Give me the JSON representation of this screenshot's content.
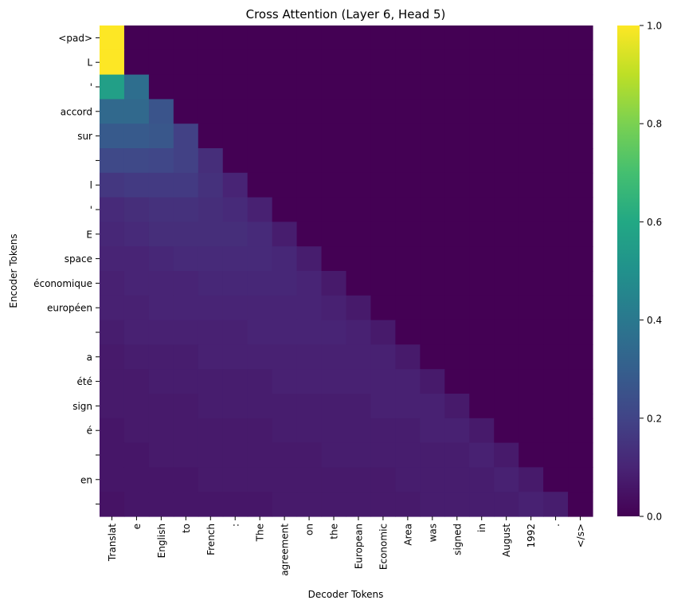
{
  "chart_data": {
    "type": "heatmap",
    "title": "Cross Attention (Layer 6, Head 5)",
    "xlabel": "Decoder Tokens",
    "ylabel": "Encoder Tokens",
    "x_categories": [
      "Translat",
      "e",
      "English",
      "to",
      "French",
      ":",
      "The",
      "agreement",
      "on",
      "the",
      "European",
      "Economic",
      "Area",
      "was",
      "signed",
      "in",
      "August",
      "1992",
      ".",
      "</s>"
    ],
    "y_categories": [
      "<pad>",
      "L",
      "'",
      "accord",
      "sur",
      "",
      "l",
      "'",
      "E",
      "space",
      "économique",
      "européen",
      "",
      "a",
      "été",
      "sign",
      "é",
      "",
      "en",
      ""
    ],
    "colorbar": {
      "min": 0.0,
      "max": 1.0,
      "colormap": "viridis",
      "ticks": [
        "0.0",
        "0.2",
        "0.4",
        "0.6",
        "0.8",
        "1.0"
      ]
    },
    "values": [
      [
        1.0,
        0,
        0,
        0,
        0,
        0,
        0,
        0,
        0,
        0,
        0,
        0,
        0,
        0,
        0,
        0,
        0,
        0,
        0,
        0
      ],
      [
        1.0,
        0,
        0,
        0,
        0,
        0,
        0,
        0,
        0,
        0,
        0,
        0,
        0,
        0,
        0,
        0,
        0,
        0,
        0,
        0
      ],
      [
        0.56,
        0.36,
        0,
        0,
        0,
        0,
        0,
        0,
        0,
        0,
        0,
        0,
        0,
        0,
        0,
        0,
        0,
        0,
        0,
        0
      ],
      [
        0.34,
        0.34,
        0.26,
        0,
        0,
        0,
        0,
        0,
        0,
        0,
        0,
        0,
        0,
        0,
        0,
        0,
        0,
        0,
        0,
        0
      ],
      [
        0.28,
        0.28,
        0.27,
        0.19,
        0,
        0,
        0,
        0,
        0,
        0,
        0,
        0,
        0,
        0,
        0,
        0,
        0,
        0,
        0,
        0
      ],
      [
        0.22,
        0.22,
        0.21,
        0.19,
        0.13,
        0,
        0,
        0,
        0,
        0,
        0,
        0,
        0,
        0,
        0,
        0,
        0,
        0,
        0,
        0
      ],
      [
        0.16,
        0.17,
        0.17,
        0.17,
        0.14,
        0.1,
        0,
        0,
        0,
        0,
        0,
        0,
        0,
        0,
        0,
        0,
        0,
        0,
        0,
        0
      ],
      [
        0.12,
        0.13,
        0.14,
        0.14,
        0.13,
        0.12,
        0.09,
        0,
        0,
        0,
        0,
        0,
        0,
        0,
        0,
        0,
        0,
        0,
        0,
        0
      ],
      [
        0.11,
        0.12,
        0.13,
        0.13,
        0.13,
        0.13,
        0.12,
        0.08,
        0,
        0,
        0,
        0,
        0,
        0,
        0,
        0,
        0,
        0,
        0,
        0
      ],
      [
        0.1,
        0.1,
        0.11,
        0.12,
        0.12,
        0.12,
        0.12,
        0.11,
        0.08,
        0,
        0,
        0,
        0,
        0,
        0,
        0,
        0,
        0,
        0,
        0
      ],
      [
        0.09,
        0.1,
        0.1,
        0.1,
        0.11,
        0.11,
        0.11,
        0.11,
        0.1,
        0.07,
        0,
        0,
        0,
        0,
        0,
        0,
        0,
        0,
        0,
        0
      ],
      [
        0.09,
        0.09,
        0.1,
        0.1,
        0.1,
        0.1,
        0.1,
        0.1,
        0.1,
        0.09,
        0.07,
        0,
        0,
        0,
        0,
        0,
        0,
        0,
        0,
        0
      ],
      [
        0.08,
        0.09,
        0.09,
        0.09,
        0.09,
        0.09,
        0.1,
        0.1,
        0.1,
        0.1,
        0.09,
        0.07,
        0,
        0,
        0,
        0,
        0,
        0,
        0,
        0
      ],
      [
        0.07,
        0.08,
        0.08,
        0.08,
        0.09,
        0.09,
        0.09,
        0.09,
        0.09,
        0.09,
        0.09,
        0.09,
        0.07,
        0,
        0,
        0,
        0,
        0,
        0,
        0
      ],
      [
        0.07,
        0.07,
        0.08,
        0.08,
        0.08,
        0.08,
        0.08,
        0.09,
        0.09,
        0.09,
        0.09,
        0.09,
        0.09,
        0.07,
        0,
        0,
        0,
        0,
        0,
        0
      ],
      [
        0.07,
        0.07,
        0.07,
        0.07,
        0.08,
        0.08,
        0.08,
        0.08,
        0.08,
        0.08,
        0.08,
        0.09,
        0.09,
        0.09,
        0.07,
        0,
        0,
        0,
        0,
        0
      ],
      [
        0.06,
        0.07,
        0.07,
        0.07,
        0.07,
        0.07,
        0.07,
        0.08,
        0.08,
        0.08,
        0.08,
        0.08,
        0.08,
        0.09,
        0.09,
        0.07,
        0,
        0,
        0,
        0
      ],
      [
        0.06,
        0.06,
        0.07,
        0.07,
        0.07,
        0.07,
        0.07,
        0.07,
        0.07,
        0.08,
        0.08,
        0.08,
        0.08,
        0.08,
        0.08,
        0.09,
        0.07,
        0,
        0,
        0
      ],
      [
        0.06,
        0.06,
        0.06,
        0.06,
        0.07,
        0.07,
        0.07,
        0.07,
        0.07,
        0.07,
        0.07,
        0.07,
        0.08,
        0.08,
        0.08,
        0.08,
        0.09,
        0.07,
        0,
        0
      ],
      [
        0.05,
        0.06,
        0.06,
        0.06,
        0.06,
        0.06,
        0.06,
        0.07,
        0.07,
        0.07,
        0.07,
        0.07,
        0.07,
        0.08,
        0.08,
        0.08,
        0.08,
        0.09,
        0.08,
        0
      ]
    ]
  }
}
